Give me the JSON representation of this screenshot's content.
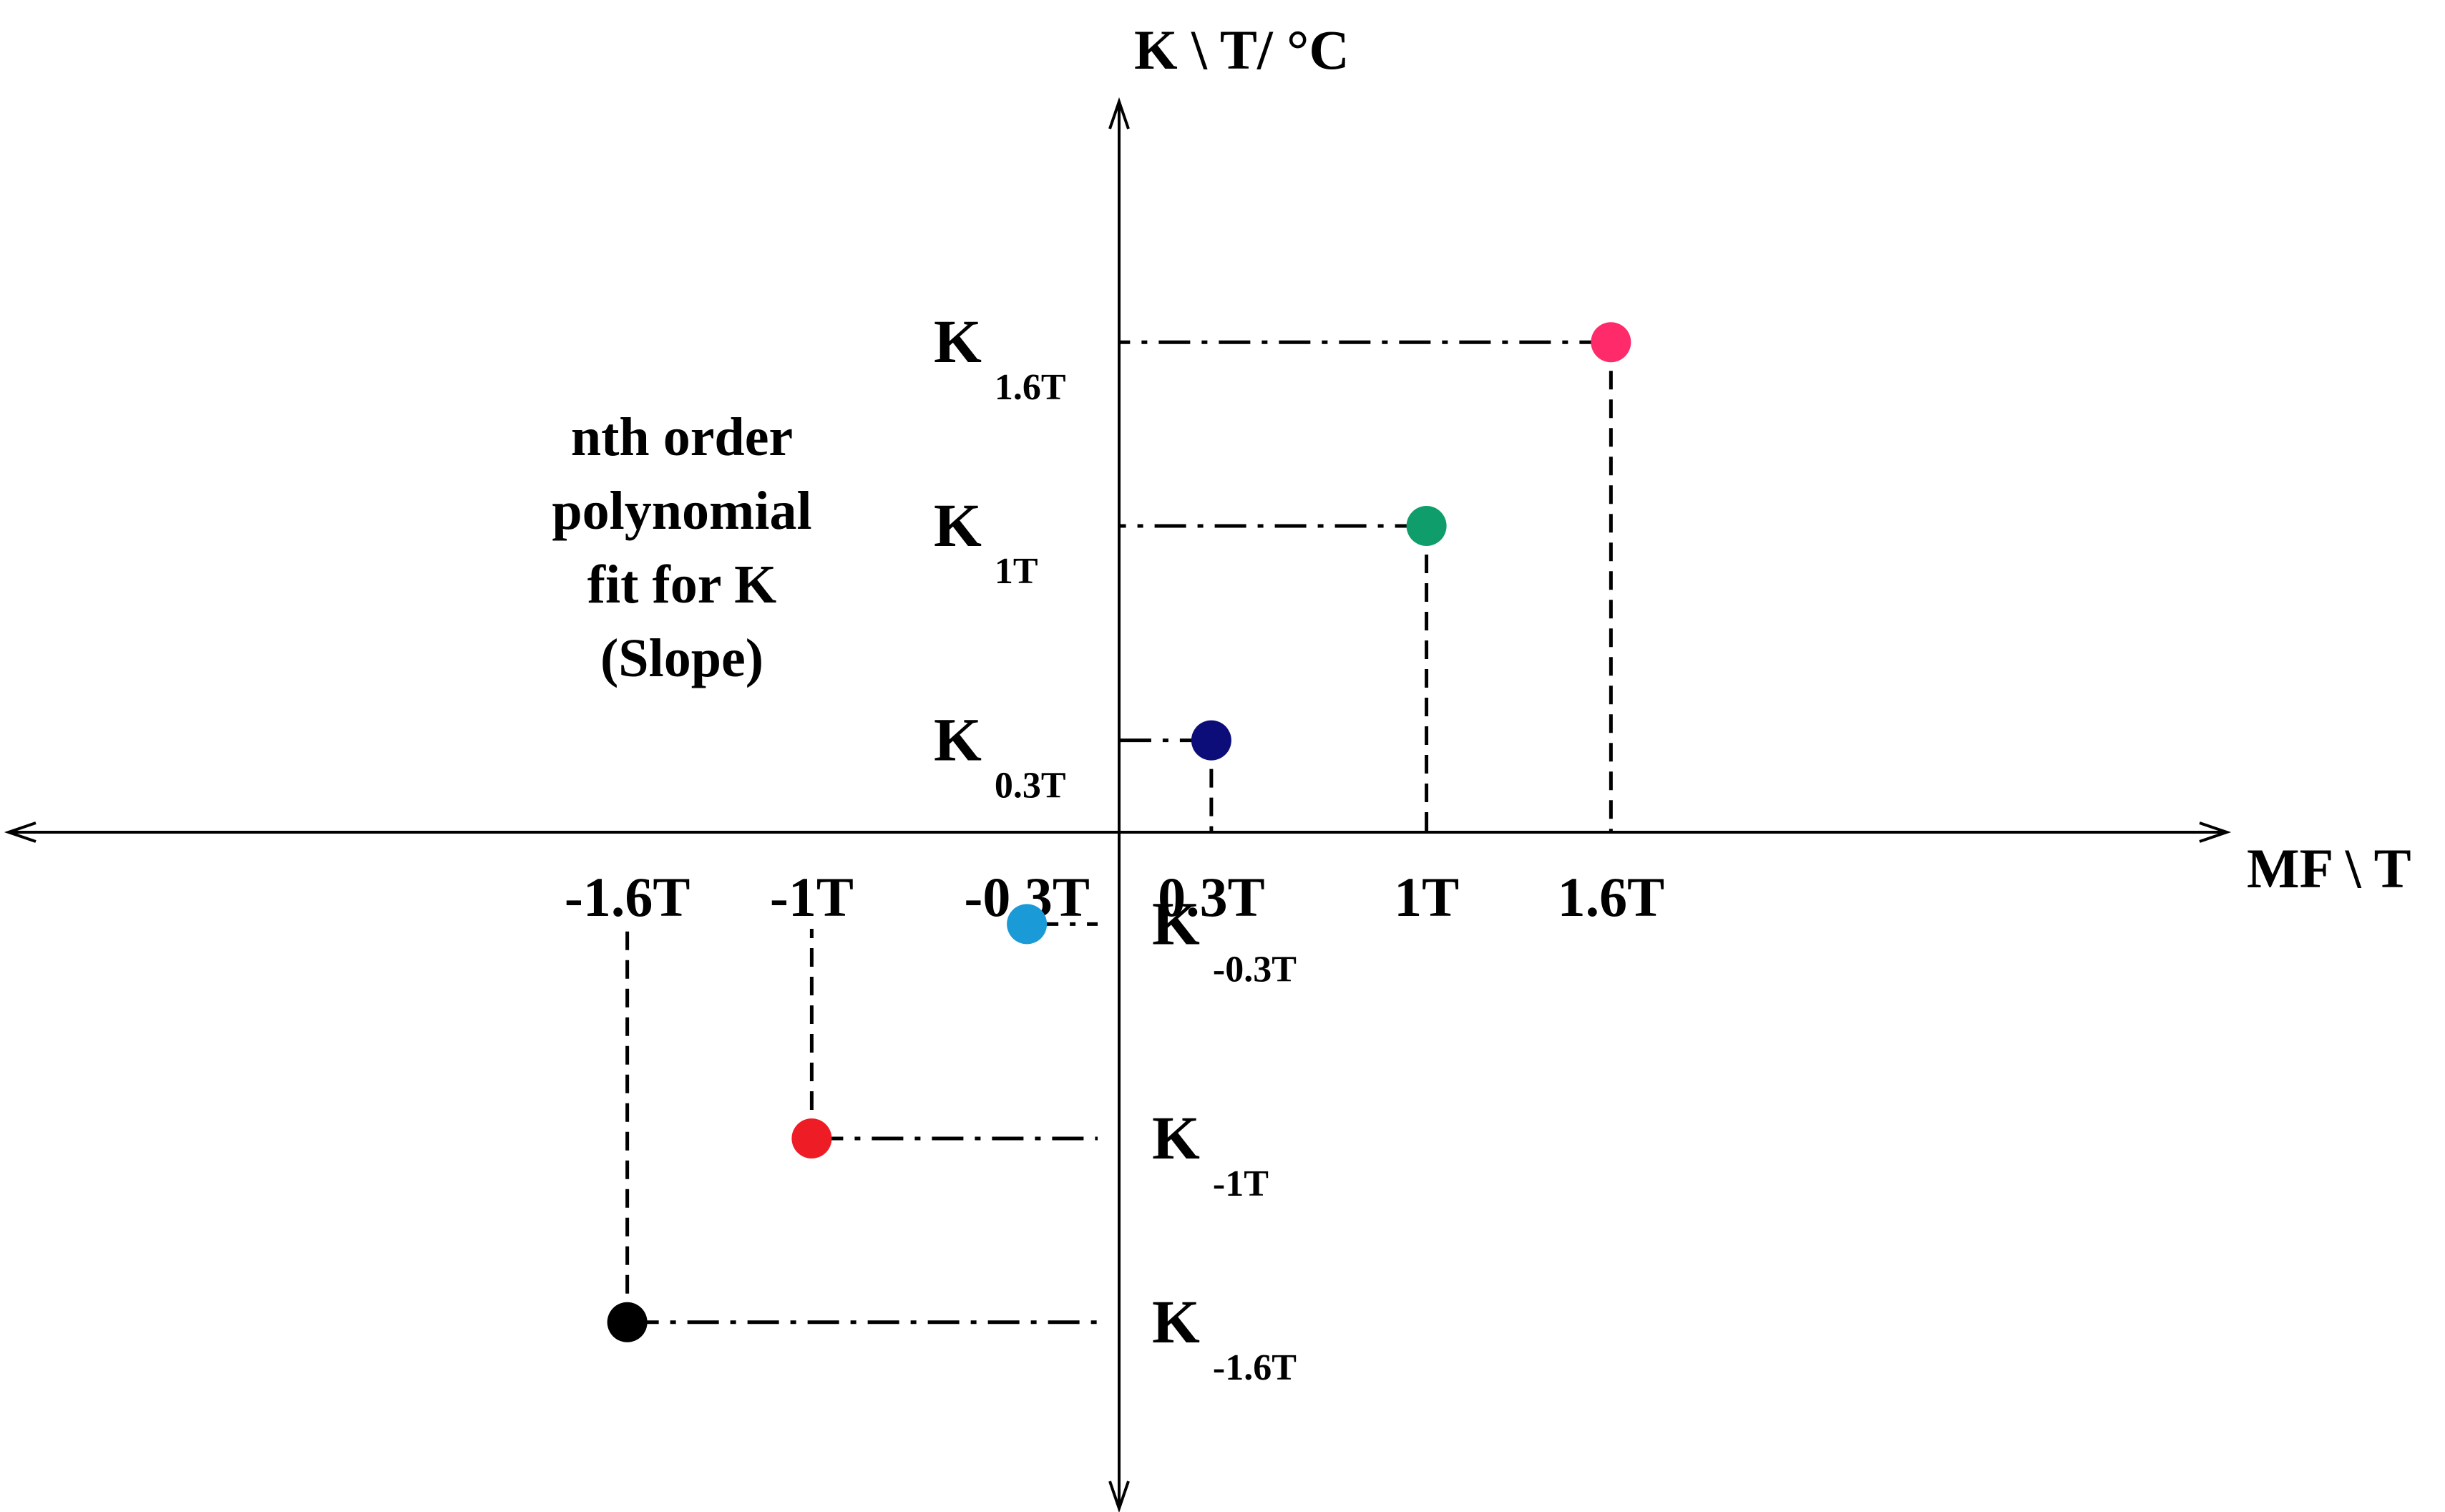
{
  "chart_data": {
    "type": "scatter",
    "title": "",
    "xlabel": "MF \\ T",
    "ylabel": "K \\ T/ °C",
    "x_ticks": [
      "-1.6T",
      "-1T",
      "-0.3T",
      "0.3T",
      "1T",
      "1.6T"
    ],
    "points": [
      {
        "x": -1.6,
        "y": -1.6,
        "label_main": "K",
        "label_sub": "-1.6T",
        "color": "#000000"
      },
      {
        "x": -1.0,
        "y": -1.0,
        "label_main": "K",
        "label_sub": "-1T",
        "color": "#ee1c25"
      },
      {
        "x": -0.3,
        "y": -0.3,
        "label_main": "K",
        "label_sub": "-0.3T",
        "color": "#1a9ad6"
      },
      {
        "x": 0.3,
        "y": 0.3,
        "label_main": "K",
        "label_sub": "0.3T",
        "color": "#0d0d7a"
      },
      {
        "x": 1.0,
        "y": 1.0,
        "label_main": "K",
        "label_sub": "1T",
        "color": "#0f9d6b"
      },
      {
        "x": 1.6,
        "y": 1.6,
        "label_main": "K",
        "label_sub": "1.6T",
        "color": "#ff2a6a"
      }
    ],
    "annotation": {
      "lines": [
        "nth order",
        "polynomial",
        "fit for K",
        "(Slope)"
      ],
      "color": "#ff6a2b"
    },
    "grid": false,
    "legend": "none"
  }
}
